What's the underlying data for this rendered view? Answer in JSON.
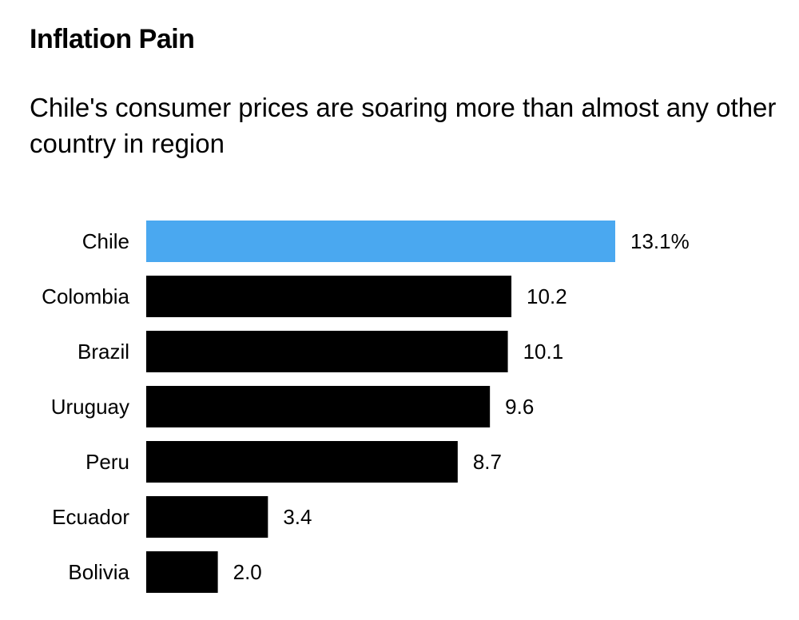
{
  "chart_data": {
    "type": "bar",
    "orientation": "horizontal",
    "title": "Inflation Pain",
    "subtitle": "Chile's consumer prices are soaring more than almost any other country in region",
    "categories": [
      "Chile",
      "Colombia",
      "Brazil",
      "Uruguay",
      "Peru",
      "Ecuador",
      "Bolivia"
    ],
    "values": [
      13.1,
      10.2,
      10.1,
      9.6,
      8.7,
      3.4,
      2.0
    ],
    "data_labels": [
      "13.1%",
      "10.2",
      "10.1",
      "9.6",
      "8.7",
      "3.4",
      "2.0"
    ],
    "highlight": "Chile",
    "colors": {
      "highlight": "#4aa8f0",
      "default": "#000000"
    },
    "xlabel": "",
    "ylabel": "",
    "xlim": [
      0,
      13.1
    ],
    "grid": false,
    "legend": "none"
  }
}
